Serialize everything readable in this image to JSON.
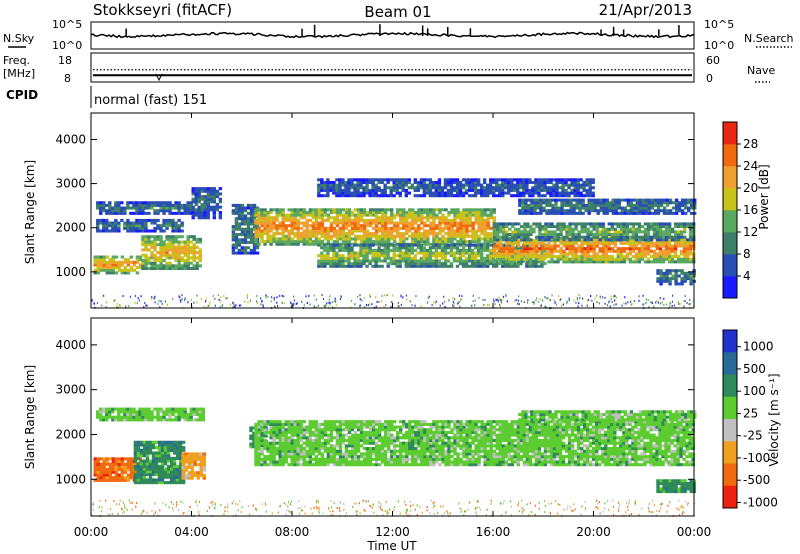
{
  "header": {
    "station": "Stokkseyri (fitACF)",
    "beam": "Beam 01",
    "date": "21/Apr/2013"
  },
  "summary": {
    "nsky_label": "N.Sky",
    "nsky_ticks": [
      "10^5",
      "10^0"
    ],
    "nsearch_label": "N.Search",
    "nsearch_ticks": [
      "10^5",
      "10^0"
    ],
    "freq_label": "Freq.",
    "freq_unit": "[MHz]",
    "freq_ticks": [
      "18",
      "8"
    ],
    "nave_label": "Nave",
    "nave_ticks": [
      "60",
      "0"
    ],
    "cpid_label": "CPID",
    "cpid_value": "normal (fast) 151",
    "freq_level_mhz": 10.2,
    "nave_level": 26
  },
  "chart_data": [
    {
      "type": "heatmap",
      "panel": "power",
      "ylabel": "Slant Range [km]",
      "ylim": [
        180,
        4600
      ],
      "y_ticks": [
        "1000",
        "2000",
        "3000",
        "4000"
      ],
      "y_tick_values": [
        1000,
        2000,
        3000,
        4000
      ],
      "color_label": "Power [dB]",
      "color_ticks": [
        "4",
        "8",
        "12",
        "16",
        "20",
        "24",
        "28"
      ],
      "color_tick_values": [
        4,
        8,
        12,
        16,
        20,
        24,
        28
      ],
      "color_range": [
        0,
        32
      ],
      "colors": [
        "#1a1aff",
        "#2a4fb4",
        "#3e7f6a",
        "#5ba860",
        "#c8c21a",
        "#f0a030",
        "#f06a10",
        "#e82810"
      ],
      "bands": [
        {
          "x": [
            0.1,
            2.0
          ],
          "r": [
            950,
            1350
          ],
          "level": 22
        },
        {
          "x": [
            2.0,
            4.4
          ],
          "r": [
            1050,
            1800
          ],
          "level": 20
        },
        {
          "x": [
            0.2,
            4.0
          ],
          "r": [
            2300,
            2550
          ],
          "level": 9
        },
        {
          "x": [
            0.2,
            3.6
          ],
          "r": [
            1900,
            2150
          ],
          "level": 9
        },
        {
          "x": [
            4.0,
            5.2
          ],
          "r": [
            2200,
            2900
          ],
          "level": 8
        },
        {
          "x": [
            5.6,
            6.6
          ],
          "r": [
            1400,
            2500
          ],
          "level": 10
        },
        {
          "x": [
            6.5,
            16.0
          ],
          "r": [
            1600,
            2400
          ],
          "level": 23
        },
        {
          "x": [
            9.0,
            18.0
          ],
          "r": [
            1100,
            1600
          ],
          "level": 16
        },
        {
          "x": [
            16.0,
            24.0
          ],
          "r": [
            1200,
            1800
          ],
          "level": 24
        },
        {
          "x": [
            16.0,
            24.0
          ],
          "r": [
            1700,
            2100
          ],
          "level": 14
        },
        {
          "x": [
            17.0,
            24.0
          ],
          "r": [
            2300,
            2650
          ],
          "level": 9
        },
        {
          "x": [
            9.0,
            20.0
          ],
          "r": [
            2700,
            3100
          ],
          "level": 7
        },
        {
          "x": [
            22.5,
            24.0
          ],
          "r": [
            700,
            1050
          ],
          "level": 10
        }
      ]
    },
    {
      "type": "heatmap",
      "panel": "velocity",
      "ylabel": "Slant Range [km]",
      "ylim": [
        180,
        4600
      ],
      "y_ticks": [
        "1000",
        "2000",
        "3000",
        "4000"
      ],
      "y_tick_values": [
        1000,
        2000,
        3000,
        4000
      ],
      "color_label": "Velocity [m s⁻¹]",
      "color_ticks": [
        "1000",
        "500",
        "100",
        "25",
        "-25",
        "-100",
        "-500",
        "-1000"
      ],
      "colors": [
        "#2233cc",
        "#2a6a9a",
        "#2f8a5a",
        "#5ccc30",
        "#c0c0c0",
        "#f0a020",
        "#f06a10",
        "#ee2010"
      ],
      "ground_scatter_color": "#c0c0c0",
      "bands": [
        {
          "x": [
            0.1,
            2.0
          ],
          "r": [
            950,
            1450
          ],
          "cls": "-500"
        },
        {
          "x": [
            1.7,
            3.7
          ],
          "r": [
            900,
            1850
          ],
          "cls": "100"
        },
        {
          "x": [
            3.6,
            4.5
          ],
          "r": [
            1000,
            1600
          ],
          "cls": "-100"
        },
        {
          "x": [
            6.3,
            7.0
          ],
          "r": [
            1700,
            2150
          ],
          "cls": "100"
        },
        {
          "x": [
            0.2,
            4.5
          ],
          "r": [
            2300,
            2550
          ],
          "cls": "25"
        },
        {
          "x": [
            6.5,
            24.0
          ],
          "r": [
            1300,
            2300
          ],
          "cls": "25"
        },
        {
          "x": [
            17.0,
            24.0
          ],
          "r": [
            2300,
            2500
          ],
          "cls": "25"
        },
        {
          "x": [
            22.5,
            24.0
          ],
          "r": [
            700,
            950
          ],
          "cls": "100"
        }
      ]
    }
  ],
  "xaxis": {
    "label": "Time UT",
    "ticks": [
      "00:00",
      "04:00",
      "08:00",
      "12:00",
      "16:00",
      "20:00",
      "00:00"
    ],
    "tick_hours": [
      0,
      4,
      8,
      12,
      16,
      20,
      24
    ],
    "range_hours": [
      0,
      24
    ]
  }
}
